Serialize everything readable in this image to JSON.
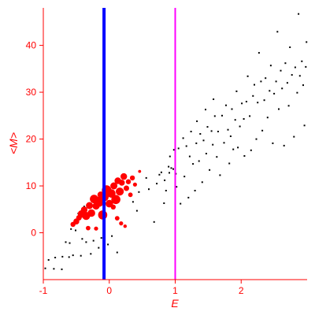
{
  "chart_data": {
    "type": "scatter",
    "title": "",
    "xlabel": "E",
    "ylabel": "<M>",
    "xlim": [
      -1.0,
      3.0
    ],
    "ylim": [
      -10.0,
      48.0
    ],
    "xticks": [
      -1,
      0,
      1,
      2
    ],
    "yticks": [
      0,
      10,
      20,
      30,
      40
    ],
    "grid": false,
    "colors": {
      "axes": "#ff0000",
      "ticks": "#ff0000",
      "background_points": "#000000",
      "highlighted_points": "#ff0000",
      "line_blue": "#0000ff",
      "line_magenta": "#ff00ff"
    },
    "vertical_lines": [
      {
        "x": -0.08,
        "color": "#0000ff"
      },
      {
        "x": 1.0,
        "color": "#ff00ff"
      }
    ],
    "series": [
      {
        "points": [
          [
            -0.97,
            -7.6
          ],
          [
            -0.92,
            -5.8
          ],
          [
            -0.84,
            -7.7
          ],
          [
            -0.82,
            -5.3
          ],
          [
            -0.72,
            -7.8
          ],
          [
            -0.71,
            -5.1
          ],
          [
            -0.66,
            -2.0
          ],
          [
            -0.61,
            -5.2
          ],
          [
            -0.6,
            -2.2
          ],
          [
            -0.58,
            0.8
          ],
          [
            -0.55,
            -4.8
          ],
          [
            -0.51,
            0.5
          ],
          [
            -0.47,
            4.1
          ],
          [
            -0.43,
            -4.9
          ],
          [
            -0.41,
            -1.3
          ],
          [
            -0.38,
            5.6
          ],
          [
            -0.35,
            -2.0
          ],
          [
            -0.28,
            -4.5
          ],
          [
            -0.24,
            -1.7
          ],
          [
            -0.16,
            -3.2
          ],
          [
            -0.12,
            -1.1
          ],
          [
            -0.02,
            -2.5
          ],
          [
            0.04,
            -0.7
          ],
          [
            0.12,
            -4.2
          ],
          [
            0.36,
            6.6
          ],
          [
            0.42,
            4.7
          ],
          [
            0.45,
            8.7
          ],
          [
            0.56,
            11.7
          ],
          [
            0.6,
            9.3
          ],
          [
            0.68,
            2.3
          ],
          [
            0.72,
            10.5
          ],
          [
            0.76,
            12.4
          ],
          [
            0.79,
            12.9
          ],
          [
            0.83,
            6.3
          ],
          [
            0.84,
            11.2
          ],
          [
            0.86,
            9.0
          ],
          [
            0.9,
            14.1
          ],
          [
            0.91,
            12.8
          ],
          [
            0.92,
            16.3
          ],
          [
            0.94,
            13.8
          ],
          [
            0.97,
            13.6
          ],
          [
            0.98,
            17.7
          ],
          [
            1.01,
            12.6
          ],
          [
            1.02,
            9.8
          ],
          [
            1.05,
            18.0
          ],
          [
            1.08,
            6.2
          ],
          [
            1.12,
            20.2
          ],
          [
            1.14,
            12.0
          ],
          [
            1.17,
            18.5
          ],
          [
            1.2,
            7.5
          ],
          [
            1.22,
            16.3
          ],
          [
            1.24,
            21.6
          ],
          [
            1.27,
            14.7
          ],
          [
            1.3,
            9.0
          ],
          [
            1.32,
            19.1
          ],
          [
            1.33,
            23.8
          ],
          [
            1.36,
            15.3
          ],
          [
            1.38,
            21.1
          ],
          [
            1.41,
            10.8
          ],
          [
            1.43,
            19.7
          ],
          [
            1.46,
            26.3
          ],
          [
            1.47,
            16.9
          ],
          [
            1.49,
            22.6
          ],
          [
            1.52,
            13.4
          ],
          [
            1.55,
            21.7
          ],
          [
            1.57,
            18.8
          ],
          [
            1.58,
            28.5
          ],
          [
            1.6,
            24.9
          ],
          [
            1.63,
            16.2
          ],
          [
            1.65,
            21.6
          ],
          [
            1.68,
            12.3
          ],
          [
            1.71,
            25.0
          ],
          [
            1.74,
            19.2
          ],
          [
            1.77,
            27.2
          ],
          [
            1.8,
            22.0
          ],
          [
            1.82,
            14.8
          ],
          [
            1.84,
            20.6
          ],
          [
            1.86,
            26.4
          ],
          [
            1.88,
            17.8
          ],
          [
            1.91,
            24.1
          ],
          [
            1.93,
            30.2
          ],
          [
            1.95,
            18.2
          ],
          [
            1.98,
            22.7
          ],
          [
            2.01,
            27.6
          ],
          [
            2.04,
            24.3
          ],
          [
            2.05,
            16.4
          ],
          [
            2.08,
            28.0
          ],
          [
            2.1,
            33.4
          ],
          [
            2.13,
            24.9
          ],
          [
            2.15,
            17.6
          ],
          [
            2.18,
            29.2
          ],
          [
            2.2,
            31.6
          ],
          [
            2.23,
            20.0
          ],
          [
            2.25,
            27.8
          ],
          [
            2.27,
            38.4
          ],
          [
            2.3,
            32.3
          ],
          [
            2.32,
            21.8
          ],
          [
            2.35,
            28.3
          ],
          [
            2.37,
            33.0
          ],
          [
            2.4,
            24.6
          ],
          [
            2.43,
            30.3
          ],
          [
            2.45,
            35.7
          ],
          [
            2.48,
            19.1
          ],
          [
            2.5,
            29.7
          ],
          [
            2.53,
            32.3
          ],
          [
            2.55,
            42.9
          ],
          [
            2.57,
            26.4
          ],
          [
            2.6,
            34.6
          ],
          [
            2.62,
            30.8
          ],
          [
            2.65,
            18.6
          ],
          [
            2.67,
            36.2
          ],
          [
            2.7,
            32.0
          ],
          [
            2.72,
            27.1
          ],
          [
            2.74,
            39.6
          ],
          [
            2.77,
            33.7
          ],
          [
            2.8,
            20.5
          ],
          [
            2.82,
            35.3
          ],
          [
            2.85,
            29.9
          ],
          [
            2.87,
            46.7
          ],
          [
            2.89,
            33.5
          ],
          [
            2.92,
            36.6
          ],
          [
            2.94,
            31.5
          ],
          [
            2.96,
            22.9
          ],
          [
            2.98,
            35.4
          ],
          [
            2.99,
            40.7
          ]
        ]
      },
      {
        "points": [
          [
            -0.55,
            1.8
          ],
          [
            -0.5,
            2.4
          ],
          [
            -0.46,
            3.2
          ],
          [
            -0.42,
            4.0
          ],
          [
            -0.38,
            4.9
          ],
          [
            -0.35,
            3.6
          ],
          [
            -0.3,
            5.8
          ],
          [
            -0.27,
            4.2
          ],
          [
            -0.23,
            7.2
          ],
          [
            -0.2,
            5.7
          ],
          [
            -0.16,
            6.6
          ],
          [
            -0.13,
            8.1
          ],
          [
            -0.1,
            3.8
          ],
          [
            -0.07,
            7.6
          ],
          [
            -0.04,
            9.1
          ],
          [
            0.0,
            6.2
          ],
          [
            0.03,
            8.4
          ],
          [
            0.07,
            10.0
          ],
          [
            0.1,
            7.1
          ],
          [
            0.13,
            11.1
          ],
          [
            0.16,
            8.8
          ],
          [
            0.19,
            10.7
          ],
          [
            0.22,
            12.0
          ],
          [
            0.26,
            9.5
          ],
          [
            0.29,
            10.9
          ],
          [
            0.32,
            8.1
          ],
          [
            0.35,
            11.7
          ],
          [
            0.39,
            10.3
          ],
          [
            0.46,
            13.1
          ],
          [
            -0.32,
            1.0
          ],
          [
            -0.2,
            0.9
          ],
          [
            0.06,
            5.5
          ],
          [
            0.12,
            3.1
          ],
          [
            0.18,
            2.0
          ],
          [
            0.24,
            1.4
          ]
        ],
        "sizes": [
          1.0,
          1.2,
          1.1,
          1.5,
          1.3,
          1.6,
          1.4,
          1.5,
          1.7,
          1.4,
          2.0,
          1.3,
          1.8,
          1.6,
          1.9,
          1.5,
          1.7,
          1.4,
          1.8,
          1.3,
          1.6,
          1.2,
          1.3,
          1.1,
          1.0,
          0.9,
          1.0,
          0.8,
          0.6,
          0.9,
          0.8,
          1.0,
          0.9,
          0.8,
          0.7
        ]
      }
    ]
  }
}
